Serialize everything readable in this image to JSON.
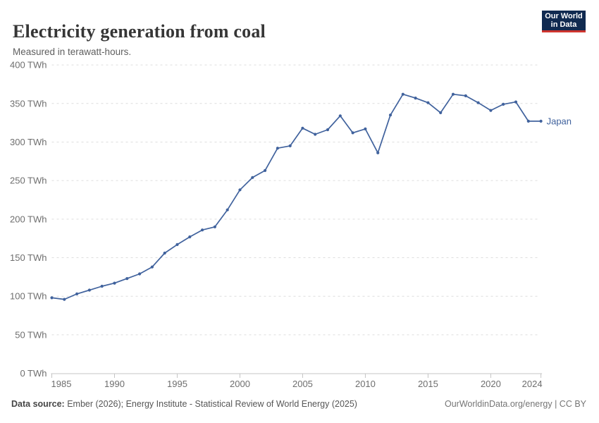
{
  "header": {
    "title": "Electricity generation from coal",
    "subtitle": "Measured in terawatt-hours.",
    "logo_line1": "Our World",
    "logo_line2": "in Data"
  },
  "chart_data": {
    "type": "line",
    "title": "Electricity generation from coal",
    "unit": "TWh",
    "grid": "horizontal-dashed",
    "legend_position": "end-of-line",
    "ylim": [
      0,
      400
    ],
    "yticks": [
      {
        "value": 0,
        "label": "0 TWh"
      },
      {
        "value": 50,
        "label": "50 TWh"
      },
      {
        "value": 100,
        "label": "100 TWh"
      },
      {
        "value": 150,
        "label": "150 TWh"
      },
      {
        "value": 200,
        "label": "200 TWh"
      },
      {
        "value": 250,
        "label": "250 TWh"
      },
      {
        "value": 300,
        "label": "300 TWh"
      },
      {
        "value": 350,
        "label": "350 TWh"
      },
      {
        "value": 400,
        "label": "400 TWh"
      }
    ],
    "xlim": [
      1985,
      2024
    ],
    "xticks": [
      {
        "value": 1985,
        "label": "1985"
      },
      {
        "value": 1990,
        "label": "1990"
      },
      {
        "value": 1995,
        "label": "1995"
      },
      {
        "value": 2000,
        "label": "2000"
      },
      {
        "value": 2005,
        "label": "2005"
      },
      {
        "value": 2010,
        "label": "2010"
      },
      {
        "value": 2015,
        "label": "2015"
      },
      {
        "value": 2020,
        "label": "2020"
      },
      {
        "value": 2024,
        "label": "2024"
      }
    ],
    "x": [
      1985,
      1986,
      1987,
      1988,
      1989,
      1990,
      1991,
      1992,
      1993,
      1994,
      1995,
      1996,
      1997,
      1998,
      1999,
      2000,
      2001,
      2002,
      2003,
      2004,
      2005,
      2006,
      2007,
      2008,
      2009,
      2010,
      2011,
      2012,
      2013,
      2014,
      2015,
      2016,
      2017,
      2018,
      2019,
      2020,
      2021,
      2022,
      2023,
      2024
    ],
    "series": [
      {
        "name": "Japan",
        "color": "#40629d",
        "values": [
          98,
          96,
          103,
          108,
          113,
          117,
          123,
          129,
          138,
          156,
          167,
          177,
          186,
          190,
          212,
          238,
          254,
          263,
          292,
          295,
          318,
          310,
          316,
          334,
          312,
          317,
          286,
          335,
          362,
          357,
          351,
          338,
          362,
          360,
          351,
          341,
          349,
          352,
          327,
          327
        ]
      }
    ]
  },
  "footer": {
    "source_label": "Data source:",
    "source_text": " Ember (2026); Energy Institute - Statistical Review of World Energy (2025)",
    "credit": "OurWorldinData.org/energy | CC BY"
  },
  "colors": {
    "line": "#40629d",
    "gridline": "#dedede",
    "axis": "#c4c4c4",
    "tick_label": "#6e6e6e",
    "logo_navy": "#102a50",
    "logo_red": "#cf352e"
  }
}
